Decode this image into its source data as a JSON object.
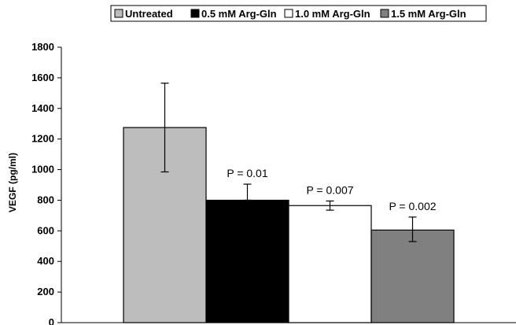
{
  "chart_data": {
    "type": "bar",
    "title": "",
    "xlabel": "",
    "ylabel": "VEGF (pg/ml)",
    "ylim": [
      0,
      1800
    ],
    "yticks": [
      "0",
      "200",
      "400",
      "600",
      "800",
      "1000",
      "1200",
      "1400",
      "1600",
      "1800"
    ],
    "grid": false,
    "legend_position": "top",
    "series": [
      {
        "name": "Untreated",
        "value": 1275,
        "error_low": 985,
        "error_high": 1565,
        "color": "#bdbdbd",
        "annotation": ""
      },
      {
        "name": "0.5 mM Arg-Gln",
        "value": 800,
        "error_low": 800,
        "error_high": 905,
        "color": "#000000",
        "annotation": "P = 0.01"
      },
      {
        "name": "1.0 mM Arg-Gln",
        "value": 765,
        "error_low": 735,
        "error_high": 795,
        "color": "#ffffff",
        "annotation": "P = 0.007"
      },
      {
        "name": "1.5 mM Arg-Gln",
        "value": 605,
        "error_low": 530,
        "error_high": 690,
        "color": "#808080",
        "annotation": "P = 0.002"
      }
    ]
  }
}
